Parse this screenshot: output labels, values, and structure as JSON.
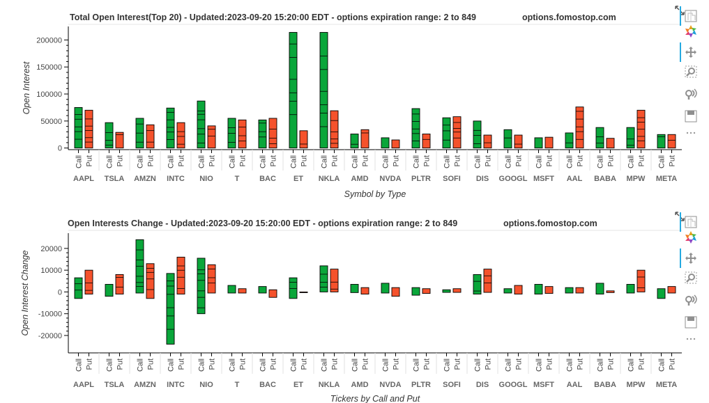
{
  "chart_data": [
    {
      "type": "bar",
      "title": "Total Open Interest(Top 20) - Updated:2023-09-20 15:20:00 EDT - options expiration range: 2 to 849",
      "site": "options.fomostop.com",
      "ylabel": "Open Interest",
      "xlabel": "Symbol by Type",
      "ylim": [
        -3000,
        225000
      ],
      "yticks": [
        0,
        50000,
        100000,
        150000,
        200000
      ],
      "ytick_labels": [
        "0",
        "50000",
        "100000",
        "150000",
        "200000"
      ],
      "type_labels": [
        "Call",
        "Put"
      ],
      "categories": [
        "AAPL",
        "TSLA",
        "AMZN",
        "INTC",
        "NIO",
        "T",
        "BAC",
        "ET",
        "NKLA",
        "AMD",
        "NVDA",
        "PLTR",
        "SOFI",
        "DIS",
        "GOOGL",
        "MSFT",
        "AAL",
        "BABA",
        "MPW",
        "META"
      ],
      "series": [
        {
          "name": "Call",
          "color": "#0aa63a",
          "values": [
            75000,
            47000,
            55000,
            74000,
            87000,
            55000,
            52000,
            214000,
            214000,
            26000,
            19000,
            73000,
            56000,
            50000,
            34000,
            19000,
            28000,
            38000,
            38000,
            25000
          ]
        },
        {
          "name": "Put",
          "color": "#f5522c",
          "values": [
            70000,
            29000,
            43000,
            47000,
            41000,
            52000,
            55000,
            32000,
            69000,
            34000,
            15000,
            26000,
            58000,
            24000,
            24000,
            20000,
            76000,
            18000,
            70000,
            25000
          ]
        }
      ]
    },
    {
      "type": "bar",
      "title": "Open Interests Change - Updated:2023-09-20 15:20:00 EDT - options expiration range: 2 to 849",
      "site": "options.fomostop.com",
      "ylabel": "Open Interest Change",
      "xlabel": "Tickers by Call and Put",
      "ylim": [
        -28000,
        27000
      ],
      "yticks": [
        -20000,
        -10000,
        0,
        10000,
        20000
      ],
      "ytick_labels": [
        "-20000",
        "-10000",
        "0",
        "10000",
        "20000"
      ],
      "type_labels": [
        "Call",
        "Put"
      ],
      "categories": [
        "AAPL",
        "TSLA",
        "AMZN",
        "INTC",
        "NIO",
        "T",
        "BAC",
        "ET",
        "NKLA",
        "AMD",
        "NVDA",
        "PLTR",
        "SOFI",
        "DIS",
        "GOOGL",
        "MSFT",
        "AAL",
        "BABA",
        "MPW",
        "META"
      ],
      "series": [
        {
          "name": "Call",
          "color": "#0aa63a",
          "high": [
            6500,
            3500,
            24000,
            8500,
            15500,
            3000,
            2500,
            6500,
            12000,
            3500,
            4000,
            2000,
            1000,
            8000,
            1500,
            3500,
            2000,
            4000,
            3500,
            1500
          ],
          "low": [
            -3000,
            -2000,
            -500,
            -24000,
            -10000,
            -500,
            -500,
            -3000,
            0,
            -300,
            -500,
            -1500,
            -200,
            -1000,
            -500,
            -1000,
            -500,
            -1000,
            -500,
            -3000
          ]
        },
        {
          "name": "Put",
          "color": "#f5522c",
          "high": [
            10000,
            8000,
            13000,
            16000,
            12500,
            1500,
            1000,
            0,
            10500,
            2000,
            2000,
            1500,
            1500,
            10500,
            3000,
            2500,
            2000,
            500,
            10000,
            2500
          ],
          "low": [
            -1000,
            -1000,
            -3000,
            -1000,
            -500,
            -500,
            -2500,
            -300,
            0,
            -1000,
            -2000,
            -700,
            -200,
            -200,
            -1000,
            -700,
            -500,
            -300,
            0,
            -500
          ]
        }
      ]
    }
  ],
  "toolbar": {
    "tools": [
      "bokeh-logo-icon",
      "pan-icon",
      "box-zoom-icon",
      "wheel-zoom-icon",
      "lasso-icon",
      "save-icon",
      "more-icon"
    ]
  }
}
